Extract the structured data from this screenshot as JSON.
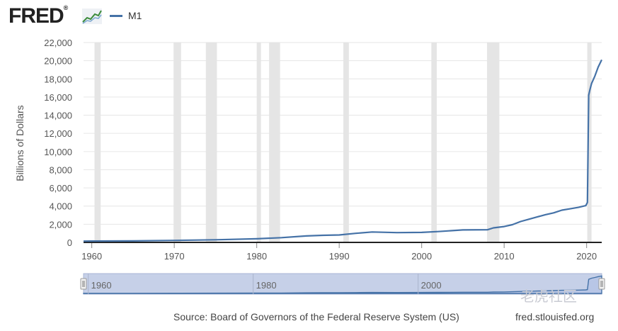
{
  "header": {
    "logo_text": "FRED",
    "logo_mark": "®",
    "logo_icon": "trend-graph-icon"
  },
  "legend": {
    "label": "M1",
    "color": "#4572a7"
  },
  "colors": {
    "line": "#4572a7",
    "recession": "#e5e5e5",
    "navigator_fill": "#c6d0e8",
    "navigator_line": "#4572a7"
  },
  "chart_data": {
    "type": "line",
    "title": "",
    "xlabel": "",
    "ylabel": "Billions of Dollars",
    "xlim": [
      1959.0,
      2021.83
    ],
    "ylim": [
      0,
      22000
    ],
    "yticks": [
      0,
      2000,
      4000,
      6000,
      8000,
      10000,
      12000,
      14000,
      16000,
      18000,
      20000,
      22000
    ],
    "ytick_labels": [
      "0",
      "2,000",
      "4,000",
      "6,000",
      "8,000",
      "10,000",
      "12,000",
      "14,000",
      "16,000",
      "18,000",
      "20,000",
      "22,000"
    ],
    "xticks": [
      1960,
      1970,
      1980,
      1990,
      2000,
      2010,
      2020
    ],
    "xtick_labels": [
      "1960",
      "1970",
      "1980",
      "1990",
      "2000",
      "2010",
      "2020"
    ],
    "recessions": [
      [
        1960.33,
        1961.08
      ],
      [
        1969.92,
        1970.83
      ],
      [
        1973.83,
        1975.17
      ],
      [
        1980.0,
        1980.5
      ],
      [
        1981.5,
        1982.83
      ],
      [
        1990.5,
        1991.17
      ],
      [
        2001.17,
        2001.83
      ],
      [
        2007.92,
        2009.42
      ],
      [
        2020.08,
        2020.33
      ]
    ],
    "series": [
      {
        "name": "M1",
        "x": [
          1959.0,
          1965,
          1970,
          1975,
          1980,
          1983,
          1986,
          1988,
          1990,
          1992,
          1994,
          1997,
          2000,
          2002,
          2005,
          2008,
          2008.7,
          2010,
          2011,
          2012,
          2013,
          2014,
          2015,
          2016,
          2017,
          2018,
          2019,
          2019.9,
          2020.1,
          2020.25,
          2020.4,
          2020.6,
          2021.0,
          2021.4,
          2021.83
        ],
        "y": [
          140,
          165,
          215,
          290,
          400,
          520,
          710,
          780,
          820,
          1000,
          1150,
          1080,
          1100,
          1190,
          1370,
          1400,
          1600,
          1750,
          1950,
          2300,
          2550,
          2800,
          3050,
          3250,
          3550,
          3700,
          3850,
          4050,
          4400,
          16200,
          16800,
          17500,
          18300,
          19300,
          20100
        ]
      }
    ],
    "navigator": {
      "labels": [
        "1960",
        "1980",
        "2000"
      ],
      "label_years": [
        1960,
        1980,
        2000
      ]
    },
    "footer": {
      "source": "Source: Board of Governors of the Federal Reserve System (US)",
      "url": "fred.stlouisfed.org"
    }
  },
  "watermark": "老虎社区"
}
